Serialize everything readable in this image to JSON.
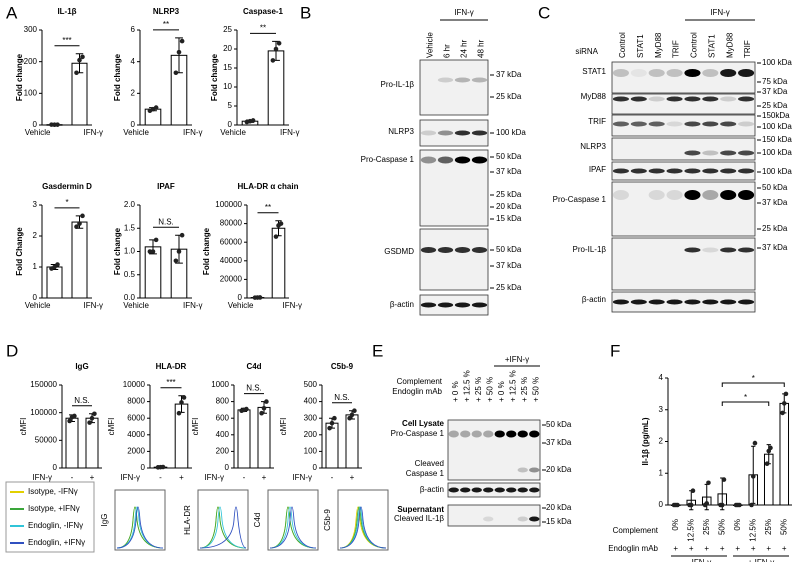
{
  "figure": {
    "panel_labels": [
      "A",
      "B",
      "C",
      "D",
      "E",
      "F"
    ]
  },
  "chart_data": [
    {
      "type": "bar",
      "title": "IL-1β",
      "ylabel": "Fold change",
      "categories": [
        "Vehicle",
        "IFN-γ"
      ],
      "values": [
        1,
        195
      ],
      "errors": [
        0.5,
        30
      ],
      "points": [
        [
          1.2,
          0.9,
          1.0
        ],
        [
          165,
          205,
          215
        ]
      ],
      "ylim": [
        0,
        300
      ],
      "yticks": [
        0,
        100,
        200,
        300
      ],
      "significance": [
        "***"
      ]
    },
    {
      "type": "bar",
      "title": "NLRP3",
      "ylabel": "Fold change",
      "categories": [
        "Vehicle",
        "IFN-γ"
      ],
      "values": [
        1,
        4.4
      ],
      "errors": [
        0.1,
        1.1
      ],
      "points": [
        [
          0.9,
          1.0,
          1.1
        ],
        [
          3.3,
          4.6,
          5.3
        ]
      ],
      "ylim": [
        0,
        6
      ],
      "yticks": [
        0,
        2,
        4,
        6
      ],
      "significance": [
        "**"
      ]
    },
    {
      "type": "bar",
      "title": "Caspase-1",
      "ylabel": "Fold change",
      "categories": [
        "Vehicle",
        "IFN-γ"
      ],
      "values": [
        1,
        19.5
      ],
      "errors": [
        0.3,
        2.5
      ],
      "points": [
        [
          0.8,
          1.0,
          1.2
        ],
        [
          17,
          20,
          21.5
        ]
      ],
      "ylim": [
        0,
        25
      ],
      "yticks": [
        0,
        5,
        10,
        15,
        20,
        25
      ],
      "significance": [
        "**"
      ]
    },
    {
      "type": "bar",
      "title": "Gasdermin D",
      "ylabel": "Fold Change",
      "categories": [
        "Vehicle",
        "IFN-γ"
      ],
      "values": [
        1,
        2.45
      ],
      "errors": [
        0.08,
        0.2
      ],
      "points": [
        [
          0.95,
          1.0,
          1.08
        ],
        [
          2.3,
          2.4,
          2.65
        ]
      ],
      "ylim": [
        0,
        3
      ],
      "yticks": [
        0,
        1,
        2,
        3
      ],
      "significance": [
        "*"
      ]
    },
    {
      "type": "bar",
      "title": "IPAF",
      "ylabel": "Fold change",
      "categories": [
        "Vehicle",
        "IFN-γ"
      ],
      "values": [
        1.1,
        1.05
      ],
      "errors": [
        0.15,
        0.3
      ],
      "points": [
        [
          1.0,
          1.0,
          1.25
        ],
        [
          0.8,
          1.0,
          1.35
        ]
      ],
      "ylim": [
        0,
        2
      ],
      "yticks": [
        {
          "value": 0,
          "label": "0.0"
        },
        {
          "value": 0.5,
          "label": "0.5"
        },
        {
          "value": 1,
          "label": "1.0"
        },
        {
          "value": 1.5,
          "label": "1.5"
        },
        {
          "value": 2,
          "label": "2.0"
        }
      ],
      "significance": [
        "N.S."
      ]
    },
    {
      "type": "bar",
      "title": "HLA-DR α chain",
      "ylabel": "Fold change",
      "categories": [
        "Vehicle",
        "IFN-γ"
      ],
      "values": [
        500,
        75000
      ],
      "errors": [
        300,
        8000
      ],
      "points": [
        [
          400,
          500,
          600
        ],
        [
          66000,
          78000,
          80000
        ]
      ],
      "ylim": [
        0,
        100000
      ],
      "yticks": [
        0,
        20000,
        40000,
        60000,
        80000,
        100000
      ],
      "significance": [
        "**"
      ]
    },
    {
      "type": "bar",
      "title": "IgG",
      "ylabel": "cMFI",
      "xlabel": "IFN-γ",
      "categories": [
        "-",
        "+"
      ],
      "values": [
        90000,
        90000
      ],
      "errors": [
        6000,
        8000
      ],
      "points": [
        [
          85000,
          92000,
          94000
        ],
        [
          82000,
          90000,
          98000
        ]
      ],
      "ylim": [
        0,
        150000
      ],
      "yticks": [
        0,
        50000,
        100000,
        150000
      ],
      "significance": [
        "N.S."
      ]
    },
    {
      "type": "bar",
      "title": "HLA-DR",
      "ylabel": "cMFI",
      "xlabel": "IFN-γ",
      "categories": [
        "-",
        "+"
      ],
      "values": [
        100,
        7700
      ],
      "errors": [
        50,
        1000
      ],
      "points": [
        [
          80,
          100,
          120
        ],
        [
          6600,
          7900,
          8500
        ]
      ],
      "ylim": [
        0,
        10000
      ],
      "yticks": [
        0,
        2000,
        4000,
        6000,
        8000,
        10000
      ],
      "significance": [
        "***"
      ]
    },
    {
      "type": "bar",
      "title": "C4d",
      "ylabel": "cMFI",
      "xlabel": "IFN-γ",
      "categories": [
        "-",
        "+"
      ],
      "values": [
        700,
        730
      ],
      "errors": [
        20,
        70
      ],
      "points": [
        [
          690,
          700,
          710
        ],
        [
          660,
          720,
          800
        ]
      ],
      "ylim": [
        0,
        1000
      ],
      "yticks": [
        0,
        200,
        400,
        600,
        800,
        1000
      ],
      "significance": [
        "N.S."
      ]
    },
    {
      "type": "bar",
      "title": "C5b-9",
      "ylabel": "cMFI",
      "xlabel": "IFN-γ",
      "categories": [
        "-",
        "+"
      ],
      "values": [
        270,
        320
      ],
      "errors": [
        30,
        25
      ],
      "points": [
        [
          240,
          270,
          300
        ],
        [
          300,
          320,
          345
        ]
      ],
      "ylim": [
        0,
        500
      ],
      "yticks": [
        0,
        100,
        200,
        300,
        400,
        500
      ],
      "significance": [
        "N.S."
      ]
    },
    {
      "type": "bar",
      "ylabel": "Il-1β (pg/mL)",
      "categories": [
        "0%",
        "12.5%",
        "25%",
        "50%",
        "0%",
        "12.5%",
        "25%",
        "50%"
      ],
      "values": [
        0,
        0.15,
        0.25,
        0.35,
        0,
        0.95,
        1.6,
        3.2
      ],
      "errors": [
        0,
        0.3,
        0.4,
        0.5,
        0,
        0.9,
        0.3,
        0.3
      ],
      "points": [
        [
          0,
          0,
          0
        ],
        [
          0,
          0,
          0.45
        ],
        [
          0,
          0.05,
          0.7
        ],
        [
          0,
          0,
          0.8
        ],
        [
          0,
          0,
          0
        ],
        [
          0,
          0.9,
          1.95
        ],
        [
          1.3,
          1.7,
          1.8
        ],
        [
          2.9,
          3.2,
          3.5
        ]
      ],
      "ylim": [
        0,
        4
      ],
      "yticks": [
        0,
        1,
        2,
        3,
        4
      ],
      "significance": [
        "*",
        "*"
      ],
      "complement_label": "Complement",
      "endoglin_label": "Endoglin mAb",
      "endoglin_marks": [
        "+",
        "+",
        "+",
        "+",
        "+",
        "+",
        "+",
        "+"
      ],
      "groups": [
        "- IFN-γ",
        "+ IFN-γ"
      ]
    }
  ],
  "blot_b": {
    "treatment": "IFN-γ",
    "lanes": [
      "Vehicle",
      "6 hr",
      "24 hr",
      "48 hr"
    ],
    "rows": [
      "Pro-IL-1β",
      "NLRP3",
      "Pro-Caspase 1",
      "GSDMD",
      "β-actin"
    ],
    "markers": [
      "37 kDa",
      "25 kDa",
      "100 kDa",
      "50 kDa",
      "37 kDa",
      "25 kDa",
      "20 kDa",
      "15 kDa",
      "50 kDa",
      "37 kDa",
      "25 kDa"
    ]
  },
  "blot_c": {
    "header": "siRNA",
    "treatment": "IFN-γ",
    "lanes": [
      "Control",
      "STAT1",
      "MyD88",
      "TRIF",
      "Control",
      "STAT1",
      "MyD88",
      "TRIF"
    ],
    "rows": [
      "STAT1",
      "MyD88",
      "TRIF",
      "NLRP3",
      "IPAF",
      "Pro-Caspase 1",
      "Pro-IL-1β",
      "β-actin"
    ],
    "markers": [
      "100 kDa",
      "75 kDa",
      "37 kDa",
      "25 kDa",
      "150kDa",
      "100 kDa",
      "150 kDa",
      "100 kDa",
      "100 kDa",
      "50 kDa",
      "37 kDa",
      "25 kDa",
      "37 kDa"
    ]
  },
  "blot_e": {
    "row_headers": [
      "Complement",
      "Endoglin mAb"
    ],
    "treatment": "+IFN-γ",
    "lanes": [
      "+ 0 %",
      "+ 12.5 %",
      "+ 25 %",
      "+ 50 %",
      "+ 0 %",
      "+ 12.5 %",
      "+ 25 %",
      "+ 50 %"
    ],
    "sections": [
      "Cell Lysate",
      "Supernatant"
    ],
    "rows": [
      "Pro-Caspase 1",
      "Cleaved",
      "Caspase 1",
      "β-actin",
      "Cleaved IL-1β"
    ],
    "markers": [
      "50 kDa",
      "37 kDa",
      "20 kDa",
      "20 kDa",
      "15 kDa"
    ]
  },
  "flow_d": {
    "legend": [
      {
        "label": "Isotype, -IFNγ",
        "color": "#e2d000"
      },
      {
        "label": "Isotype, +IFNγ",
        "color": "#3aa63a"
      },
      {
        "label": "Endoglin, -IFNγ",
        "color": "#30c4d8"
      },
      {
        "label": "Endoglin, +IFNγ",
        "color": "#3050c0"
      }
    ],
    "histograms": [
      "IgG",
      "HLA-DR",
      "C4d",
      "C5b-9"
    ]
  }
}
